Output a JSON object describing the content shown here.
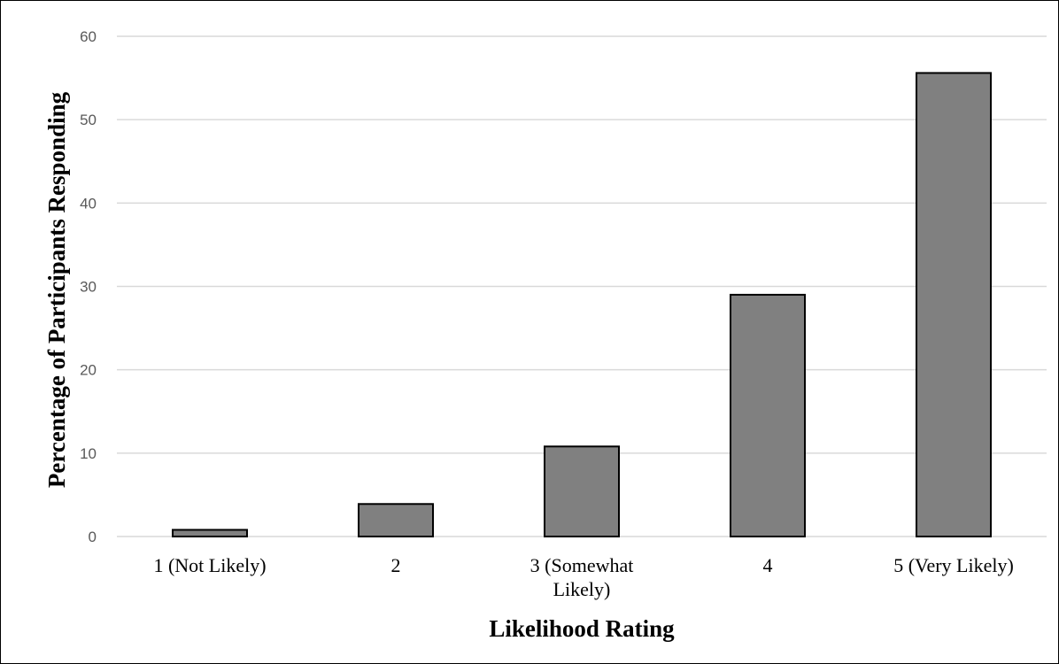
{
  "chart_data": {
    "type": "bar",
    "title": "",
    "xlabel": "Likelihood Rating",
    "ylabel": "Percentage of Participants Responding",
    "categories": [
      "1 (Not Likely)",
      "2",
      "3 (Somewhat Likely)",
      "4",
      "5 (Very Likely)"
    ],
    "category_label_lines": [
      [
        "1 (Not Likely)"
      ],
      [
        "2"
      ],
      [
        "3 (Somewhat",
        "Likely)"
      ],
      [
        "4"
      ],
      [
        "5 (Very Likely)"
      ]
    ],
    "values": [
      0.8,
      3.9,
      10.8,
      29.0,
      55.6
    ],
    "ylim": [
      0,
      60
    ],
    "yticks": [
      0,
      10,
      20,
      30,
      40,
      50,
      60
    ],
    "grid": true,
    "legend": "none",
    "bar_color": "#808080",
    "bar_outline": "#000000",
    "grid_color": "#d9d9d9"
  }
}
